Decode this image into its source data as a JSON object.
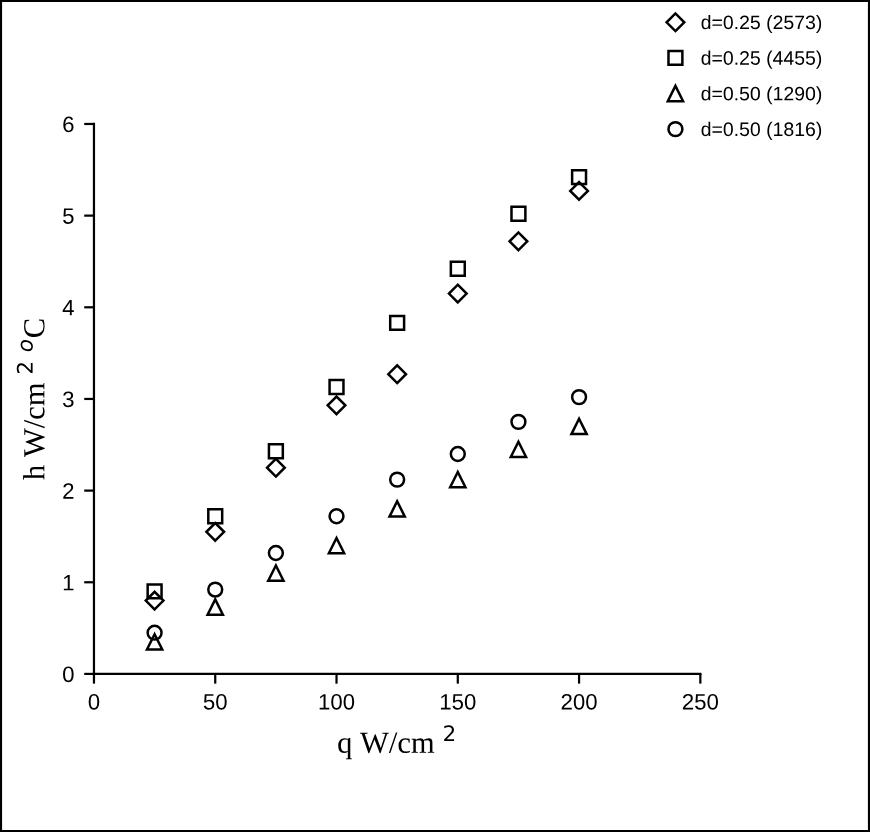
{
  "chart_data": {
    "type": "scatter",
    "xlabel": "q W/cm $^{2}$",
    "ylabel": "h W/cm $^{2}$ $^{o}$C",
    "x": [
      25,
      50,
      75,
      100,
      125,
      150,
      175,
      200
    ],
    "series": [
      {
        "name": "d=0.25 (2573)",
        "color": "#000000",
        "marker": "diamond",
        "values": [
          0.8,
          1.55,
          2.25,
          2.93,
          3.27,
          4.15,
          4.72,
          5.27
        ]
      },
      {
        "name": "d=0.25 (4455)",
        "color": "#000000",
        "marker": "square",
        "values": [
          0.9,
          1.72,
          2.43,
          3.13,
          3.83,
          4.42,
          5.02,
          5.42
        ]
      },
      {
        "name": "d=0.50 (1290)",
        "color": "#000000",
        "marker": "triangle",
        "values": [
          0.35,
          0.73,
          1.1,
          1.4,
          1.8,
          2.12,
          2.45,
          2.7
        ]
      },
      {
        "name": "d=0.50 (1816)",
        "color": "#000000",
        "marker": "circle",
        "values": [
          0.45,
          0.92,
          1.32,
          1.72,
          2.12,
          2.4,
          2.75,
          3.02
        ]
      }
    ],
    "xlim": [
      0,
      250
    ],
    "xticks": [
      0,
      50,
      100,
      150,
      200,
      250
    ],
    "ylim": [
      0,
      6
    ],
    "yticks": [
      0,
      1,
      2,
      3,
      4,
      5,
      6
    ],
    "grid": false,
    "legend": "top right"
  }
}
